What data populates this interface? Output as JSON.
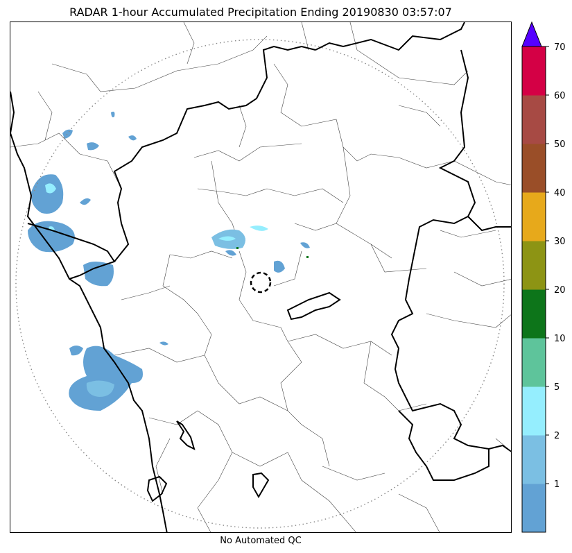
{
  "title": "RADAR 1-hour Accumulated Precipitation Ending 20190830 03:57:07",
  "footnote": "No Automated QC",
  "colorbar": {
    "labels": [
      "1",
      "2",
      "5",
      "10",
      "20",
      "30",
      "40",
      "50",
      "60",
      "70"
    ],
    "bins": [
      {
        "color": "#62a2d4"
      },
      {
        "color": "#7bbfe3"
      },
      {
        "color": "#95eefe"
      },
      {
        "color": "#5ec49b"
      },
      {
        "color": "#0d751a"
      },
      {
        "color": "#8d9414"
      },
      {
        "color": "#e7a91b"
      },
      {
        "color": "#9a4e28"
      },
      {
        "color": "#a74a44"
      },
      {
        "color": "#d40045"
      }
    ],
    "extend_color": "#5500ff"
  },
  "map": {
    "range_ring": "dotted",
    "radar_site_marker": "dashed-circle"
  }
}
